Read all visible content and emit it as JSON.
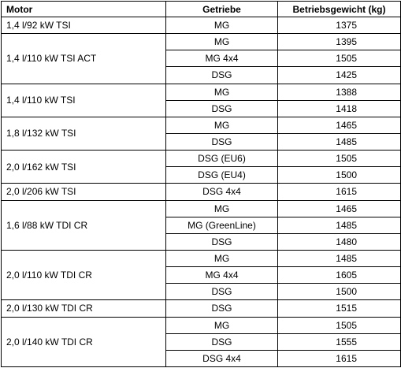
{
  "headers": {
    "motor": "Motor",
    "getriebe": "Getriebe",
    "gewicht": "Betriebsgewicht (kg)"
  },
  "groups": [
    {
      "motor": "1,4 l/92 kW TSI",
      "rows": [
        {
          "getriebe": "MG",
          "gewicht": "1375"
        }
      ]
    },
    {
      "motor": "1,4 l/110 kW TSI ACT",
      "rows": [
        {
          "getriebe": "MG",
          "gewicht": "1395"
        },
        {
          "getriebe": "MG 4x4",
          "gewicht": "1505"
        },
        {
          "getriebe": "DSG",
          "gewicht": "1425"
        }
      ]
    },
    {
      "motor": "1,4 l/110 kW TSI",
      "rows": [
        {
          "getriebe": "MG",
          "gewicht": "1388"
        },
        {
          "getriebe": "DSG",
          "gewicht": "1418"
        }
      ]
    },
    {
      "motor": "1,8 l/132 kW TSI",
      "rows": [
        {
          "getriebe": "MG",
          "gewicht": "1465"
        },
        {
          "getriebe": "DSG",
          "gewicht": "1485"
        }
      ]
    },
    {
      "motor": "2,0 l/162 kW TSI",
      "rows": [
        {
          "getriebe": "DSG (EU6)",
          "gewicht": "1505"
        },
        {
          "getriebe": "DSG (EU4)",
          "gewicht": "1500"
        }
      ]
    },
    {
      "motor": "2,0 l/206 kW TSI",
      "rows": [
        {
          "getriebe": "DSG 4x4",
          "gewicht": "1615"
        }
      ]
    },
    {
      "motor": "1,6 l/88 kW TDI CR",
      "rows": [
        {
          "getriebe": "MG",
          "gewicht": "1465"
        },
        {
          "getriebe": "MG (GreenLine)",
          "gewicht": "1485"
        },
        {
          "getriebe": "DSG",
          "gewicht": "1480"
        }
      ]
    },
    {
      "motor": "2,0 l/110 kW TDI CR",
      "rows": [
        {
          "getriebe": "MG",
          "gewicht": "1485"
        },
        {
          "getriebe": "MG 4x4",
          "gewicht": "1605"
        },
        {
          "getriebe": "DSG",
          "gewicht": "1500"
        }
      ]
    },
    {
      "motor": "2,0 l/130 kW TDI CR",
      "rows": [
        {
          "getriebe": "DSG",
          "gewicht": "1515"
        }
      ]
    },
    {
      "motor": "2,0 l/140 kW TDI CR",
      "rows": [
        {
          "getriebe": "MG",
          "gewicht": "1505"
        },
        {
          "getriebe": "DSG",
          "gewicht": "1555"
        },
        {
          "getriebe": "DSG 4x4",
          "gewicht": "1615"
        }
      ]
    }
  ]
}
